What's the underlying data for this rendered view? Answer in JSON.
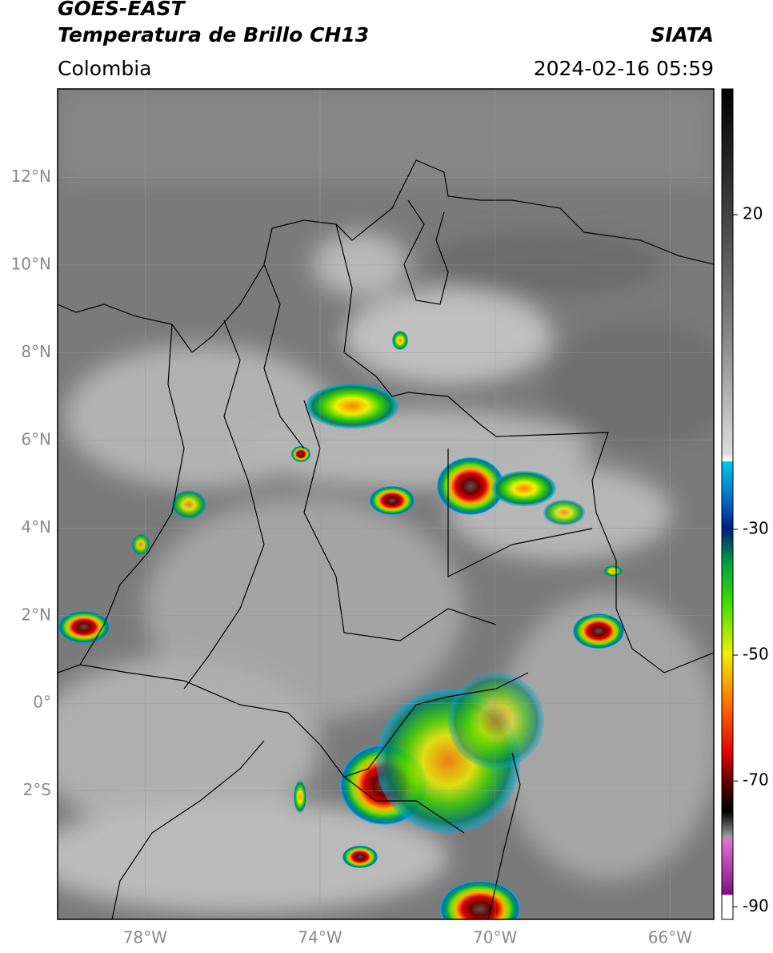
{
  "header": {
    "line1": "GOES-EAST",
    "line2": "Temperatura de Brillo CH13",
    "brand": "SIATA",
    "region": "Colombia",
    "datetime": "2024-02-16 05:59"
  },
  "map": {
    "xlim": [
      -80,
      -65
    ],
    "ylim": [
      -4.93,
      14.02
    ],
    "yticks": [
      {
        "value": 12,
        "label": "12°N"
      },
      {
        "value": 10,
        "label": "10°N"
      },
      {
        "value": 8,
        "label": "8°N"
      },
      {
        "value": 6,
        "label": "6°N"
      },
      {
        "value": 4,
        "label": "4°N"
      },
      {
        "value": 2,
        "label": "2°N"
      },
      {
        "value": 0,
        "label": "0°"
      },
      {
        "value": -2,
        "label": "2°S"
      }
    ],
    "xticks": [
      {
        "value": -78,
        "label": "78°W"
      },
      {
        "value": -74,
        "label": "74°W"
      },
      {
        "value": -70,
        "label": "70°W"
      },
      {
        "value": -66,
        "label": "66°W"
      }
    ]
  },
  "colorbar": {
    "lim": [
      40,
      -92
    ],
    "ticks": [
      20,
      -30,
      -50,
      -70,
      -90
    ]
  }
}
